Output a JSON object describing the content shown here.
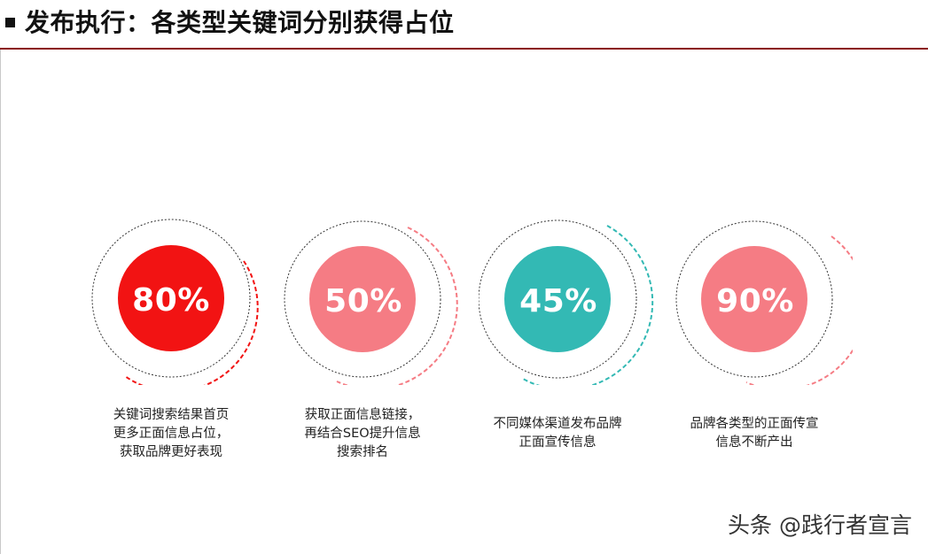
{
  "title": "发布执行：各类型关键词分别获得占位",
  "accent_colors": {
    "red": "#f21313",
    "pink": "#f57c84",
    "teal": "#33b9b4",
    "rule": "#8a1010"
  },
  "cards": [
    {
      "percent": "80%",
      "value": 80,
      "color": "#f21313",
      "desc_lines": [
        "关键词搜索结果首页",
        "更多正面信息占位，",
        "获取品牌更好表现"
      ]
    },
    {
      "percent": "50%",
      "value": 50,
      "color": "#f57c84",
      "desc_lines": [
        "获取正面信息链接，",
        "再结合SEO提升信息",
        "搜索排名"
      ]
    },
    {
      "percent": "45%",
      "value": 45,
      "color": "#33b9b4",
      "desc_lines": [
        "不同媒体渠道发布品牌",
        "正面宣传信息"
      ]
    },
    {
      "percent": "90%",
      "value": 90,
      "color": "#f57c84",
      "desc_lines": [
        "品牌各类型的正面传宣",
        "信息不断产出"
      ]
    }
  ],
  "watermark": "头条 @践行者宣言"
}
